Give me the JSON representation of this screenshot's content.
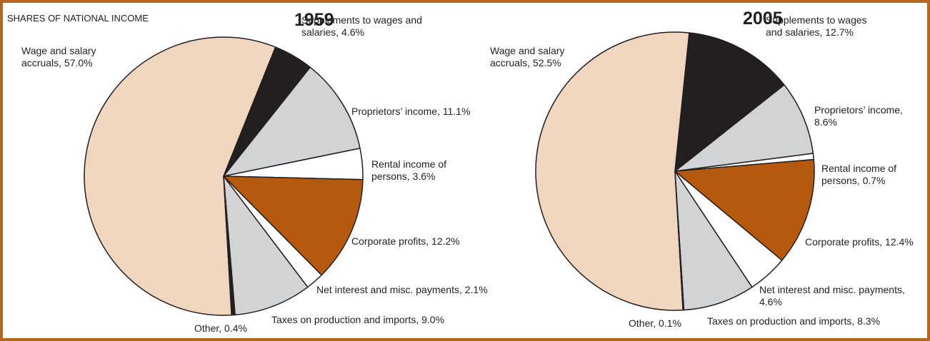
{
  "title": "SHARES OF NATIONAL INCOME",
  "chart_data": [
    {
      "type": "pie",
      "title": "1959",
      "categories": [
        "Wage and salary accruals, 57.0%",
        "Supplements to wages and salaries, 4.6%",
        "Proprietors’ income, 11.1%",
        "Rental income of persons, 3.6%",
        "Corporate profits, 12.2%",
        "Net interest and misc. payments, 2.1%",
        "Taxes on production and imports, 9.0%",
        "Other, 0.4%"
      ],
      "values": [
        57.0,
        4.6,
        11.1,
        3.6,
        12.2,
        2.1,
        9.0,
        0.4
      ],
      "colors": [
        "#f0d5bf",
        "#231f20",
        "#d1d3d4",
        "#ffffff",
        "#b5590f",
        "#ffffff",
        "#d1d3d4",
        "#231f20"
      ]
    },
    {
      "type": "pie",
      "title": "2005",
      "categories": [
        "Wage and salary accruals, 52.5%",
        "Supplements to wages and salaries, 12.7%",
        "Proprietors’ income, 8.6%",
        "Rental income of persons, 0.7%",
        "Corporate profits, 12.4%",
        "Net interest and misc. payments, 4.6%",
        "Taxes on production and imports, 8.3%",
        "Other, 0.1%"
      ],
      "values": [
        52.5,
        12.7,
        8.6,
        0.7,
        12.4,
        4.6,
        8.3,
        0.1
      ],
      "colors": [
        "#f0d5bf",
        "#231f20",
        "#d1d3d4",
        "#ffffff",
        "#b5590f",
        "#ffffff",
        "#d1d3d4",
        "#231f20"
      ]
    }
  ]
}
